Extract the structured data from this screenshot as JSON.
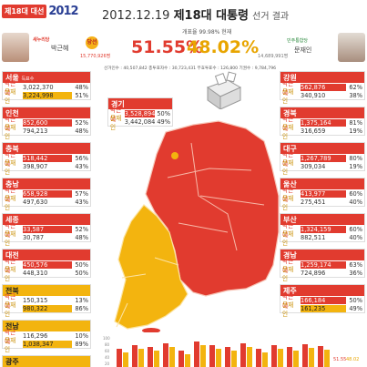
{
  "header": {
    "tag": "제18대 대선",
    "logo": "2012",
    "date": "2012.12.19",
    "title_main": "제18대 대통령",
    "title_sub": "선거 결과",
    "counted": "개표율 99.98% 현재"
  },
  "winner": {
    "party": "새누리당",
    "name": "박근혜",
    "badge": "당선",
    "votes": "15,770,926명",
    "pct": "51.55%"
  },
  "runner": {
    "party": "민주통합당",
    "name": "문재인",
    "votes": "14,689,991명",
    "pct": "48.02%"
  },
  "stats": "선거인수 : 40,507,842   총투표자수 : 30,723,431   무효투표수 : 126,800   기권수 : 9,784,796",
  "regions": [
    {
      "key": "seoul",
      "name": "서울",
      "sub": "득표수",
      "yellow": false,
      "park": {
        "votes": "3,022,370",
        "pct": "48%"
      },
      "moon": {
        "votes": "3,224,998",
        "pct": "51%"
      }
    },
    {
      "key": "incheon",
      "name": "인천",
      "sub": "",
      "yellow": false,
      "park": {
        "votes": "852,600",
        "pct": "52%"
      },
      "moon": {
        "votes": "794,213",
        "pct": "48%"
      }
    },
    {
      "key": "chungbuk",
      "name": "충북",
      "sub": "",
      "yellow": false,
      "park": {
        "votes": "518,442",
        "pct": "56%"
      },
      "moon": {
        "votes": "398,907",
        "pct": "43%"
      }
    },
    {
      "key": "chungnam",
      "name": "충남",
      "sub": "",
      "yellow": false,
      "park": {
        "votes": "658,928",
        "pct": "57%"
      },
      "moon": {
        "votes": "497,630",
        "pct": "43%"
      }
    },
    {
      "key": "sejong",
      "name": "세종",
      "sub": "",
      "yellow": false,
      "park": {
        "votes": "33,587",
        "pct": "52%"
      },
      "moon": {
        "votes": "30,787",
        "pct": "48%"
      }
    },
    {
      "key": "daejeon",
      "name": "대전",
      "sub": "",
      "yellow": false,
      "park": {
        "votes": "450,576",
        "pct": "50%"
      },
      "moon": {
        "votes": "448,310",
        "pct": "50%"
      }
    },
    {
      "key": "jeonbuk",
      "name": "전북",
      "sub": "",
      "yellow": true,
      "park": {
        "votes": "150,315",
        "pct": "13%"
      },
      "moon": {
        "votes": "980,322",
        "pct": "86%"
      }
    },
    {
      "key": "jeonnam",
      "name": "전남",
      "sub": "",
      "yellow": true,
      "park": {
        "votes": "116,296",
        "pct": "10%"
      },
      "moon": {
        "votes": "1,038,347",
        "pct": "89%"
      }
    },
    {
      "key": "gwangju",
      "name": "광주",
      "sub": "",
      "yellow": true,
      "park": {
        "votes": "",
        "pct": ""
      },
      "moon": {
        "votes": "",
        "pct": ""
      }
    },
    {
      "key": "gyeonggi",
      "name": "경기",
      "sub": "",
      "yellow": false,
      "park": {
        "votes": "3,528,894",
        "pct": "50%"
      },
      "moon": {
        "votes": "3,442,084",
        "pct": "49%"
      }
    },
    {
      "key": "gangwon",
      "name": "강원",
      "sub": "",
      "yellow": false,
      "park": {
        "votes": "562,876",
        "pct": "62%"
      },
      "moon": {
        "votes": "340,910",
        "pct": "38%"
      }
    },
    {
      "key": "gyeongbuk",
      "name": "경북",
      "sub": "",
      "yellow": false,
      "park": {
        "votes": "1,375,164",
        "pct": "81%"
      },
      "moon": {
        "votes": "316,659",
        "pct": "19%"
      }
    },
    {
      "key": "daegu",
      "name": "대구",
      "sub": "",
      "yellow": false,
      "park": {
        "votes": "1,267,789",
        "pct": "80%"
      },
      "moon": {
        "votes": "309,034",
        "pct": "19%"
      }
    },
    {
      "key": "ulsan",
      "name": "울산",
      "sub": "",
      "yellow": false,
      "park": {
        "votes": "413,977",
        "pct": "60%"
      },
      "moon": {
        "votes": "275,451",
        "pct": "40%"
      }
    },
    {
      "key": "busan",
      "name": "부산",
      "sub": "",
      "yellow": false,
      "park": {
        "votes": "1,324,159",
        "pct": "60%"
      },
      "moon": {
        "votes": "882,511",
        "pct": "40%"
      }
    },
    {
      "key": "gyeongnam",
      "name": "경남",
      "sub": "",
      "yellow": false,
      "park": {
        "votes": "1,259,174",
        "pct": "63%"
      },
      "moon": {
        "votes": "724,896",
        "pct": "36%"
      }
    },
    {
      "key": "jeju",
      "name": "제주",
      "sub": "",
      "yellow": false,
      "park": {
        "votes": "166,184",
        "pct": "50%"
      },
      "moon": {
        "votes": "161,235",
        "pct": "49%"
      }
    }
  ],
  "labels": {
    "park": "박근혜",
    "moon": "문재인"
  },
  "chart": {
    "axis": [
      "100",
      "80",
      "60",
      "40",
      "20"
    ],
    "end_label_park": "51.55",
    "end_label_moon": "48.02"
  },
  "colors": {
    "park": "#e13b2f",
    "moon": "#f3b40f"
  }
}
